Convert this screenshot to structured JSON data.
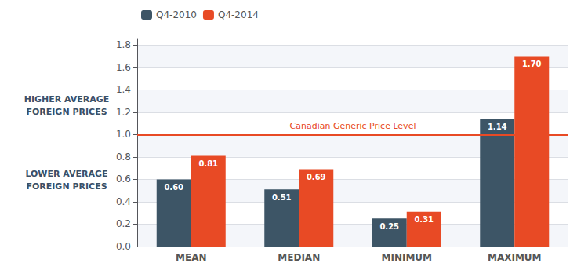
{
  "chart_data": {
    "type": "bar",
    "categories": [
      "MEAN",
      "MEDIAN",
      "MINIMUM",
      "MAXIMUM"
    ],
    "series": [
      {
        "name": "Q4-2010",
        "color": "#3d5566",
        "values": [
          0.6,
          0.51,
          0.25,
          1.14
        ],
        "value_labels": [
          "0.60",
          "0.51",
          "0.25",
          "1.14"
        ]
      },
      {
        "name": "Q4-2014",
        "color": "#e84a25",
        "values": [
          0.81,
          0.69,
          0.31,
          1.7
        ],
        "value_labels": [
          "0.81",
          "0.69",
          "0.31",
          "1.70"
        ]
      }
    ],
    "data_labels": true,
    "ylim": [
      0.0,
      1.85
    ],
    "yticks": [
      {
        "value": 0.0,
        "label": "0.0"
      },
      {
        "value": 0.2,
        "label": "0.2"
      },
      {
        "value": 0.4,
        "label": "0.4"
      },
      {
        "value": 0.6,
        "label": "0.6"
      },
      {
        "value": 0.8,
        "label": "0.8"
      },
      {
        "value": 1.0,
        "label": "1.0"
      },
      {
        "value": 1.2,
        "label": "1.2"
      },
      {
        "value": 1.4,
        "label": "1.4"
      },
      {
        "value": 1.6,
        "label": "1.6"
      },
      {
        "value": 1.8,
        "label": "1.8"
      }
    ],
    "reference_line": {
      "y": 1.0,
      "label": "Canadian Generic Price Level",
      "color": "#e84a25"
    },
    "annotations": [
      "HIGHER AVERAGE\nFOREIGN PRICES",
      "LOWER AVERAGE\nFOREIGN PRICES"
    ],
    "legend": "top",
    "grid": true
  }
}
